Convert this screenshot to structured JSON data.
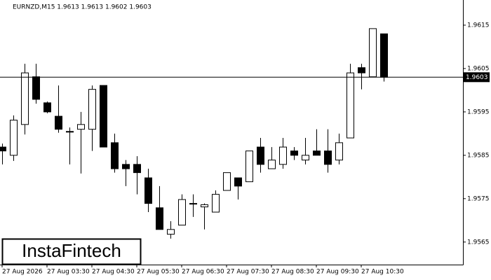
{
  "chart_data": {
    "type": "candlestick",
    "title": "EURNZD,M15  1.9613 1.9613 1.9602 1.9603",
    "categories": [
      "27 Aug 2026",
      null,
      null,
      null,
      "27 Aug 03:30",
      null,
      null,
      null,
      "27 Aug 04:30",
      null,
      null,
      null,
      "27 Aug 05:30",
      null,
      null,
      null,
      "27 Aug 06:30",
      null,
      null,
      null,
      "27 Aug 07:30",
      null,
      null,
      null,
      "27 Aug 08:30",
      null,
      null,
      null,
      "27 Aug 09:30",
      null,
      null,
      null,
      "27 Aug 10:30",
      null,
      null
    ],
    "open": [
      1.95869,
      1.9585,
      1.95921,
      1.96031,
      1.95971,
      1.9594,
      1.95905,
      1.9591,
      1.9591,
      1.96011,
      1.95879,
      1.95829,
      1.95829,
      1.95798,
      1.95729,
      1.95668,
      1.95689,
      1.95739,
      1.95731,
      1.95719,
      1.95769,
      1.95798,
      1.95789,
      1.95869,
      1.95819,
      1.95829,
      1.9586,
      1.95839,
      1.9586,
      1.9586,
      1.95839,
      1.9589,
      1.96052,
      1.96031,
      1.9613
    ],
    "high": [
      1.95877,
      1.95942,
      1.96061,
      1.96061,
      1.95974,
      1.96011,
      1.95914,
      1.9595,
      1.96011,
      1.96011,
      1.959,
      1.95839,
      1.95848,
      1.95819,
      1.95779,
      1.95698,
      1.9576,
      1.9576,
      1.95739,
      1.95769,
      1.9581,
      1.95798,
      1.9586,
      1.9589,
      1.95869,
      1.9589,
      1.95869,
      1.9589,
      1.9591,
      1.9591,
      1.959,
      1.96061,
      1.96061,
      1.96142,
      1.9613
    ],
    "low": [
      1.95829,
      1.95837,
      1.95898,
      1.95969,
      1.95947,
      1.95902,
      1.95829,
      1.95808,
      1.9586,
      1.95869,
      1.9581,
      1.95779,
      1.9576,
      1.95719,
      1.95679,
      1.95658,
      1.95689,
      1.95708,
      1.95679,
      1.95719,
      1.95769,
      1.95748,
      1.95789,
      1.9581,
      1.95819,
      1.95819,
      1.95839,
      1.95829,
      1.9585,
      1.9581,
      1.95829,
      1.9589,
      1.96002,
      1.96031,
      1.9602
    ],
    "close": [
      1.9586,
      1.95931,
      1.9604,
      1.95979,
      1.9595,
      1.9591,
      1.95905,
      1.95921,
      1.96002,
      1.95869,
      1.95819,
      1.95819,
      1.9581,
      1.95739,
      1.95679,
      1.95679,
      1.95748,
      1.95739,
      1.95736,
      1.9576,
      1.9581,
      1.95779,
      1.9586,
      1.95829,
      1.95839,
      1.95869,
      1.9585,
      1.9585,
      1.9585,
      1.95829,
      1.95879,
      1.9604,
      1.9604,
      1.96142,
      1.9603
    ],
    "up_color": "#ffffff",
    "down_color": "#000000",
    "last_price": 1.9603,
    "ylim": [
      1.95598,
      1.96208
    ],
    "yticks": [
      1.9565,
      1.9575,
      1.9585,
      1.9595,
      1.9605,
      1.9615
    ]
  },
  "watermark": "InstaFintech"
}
